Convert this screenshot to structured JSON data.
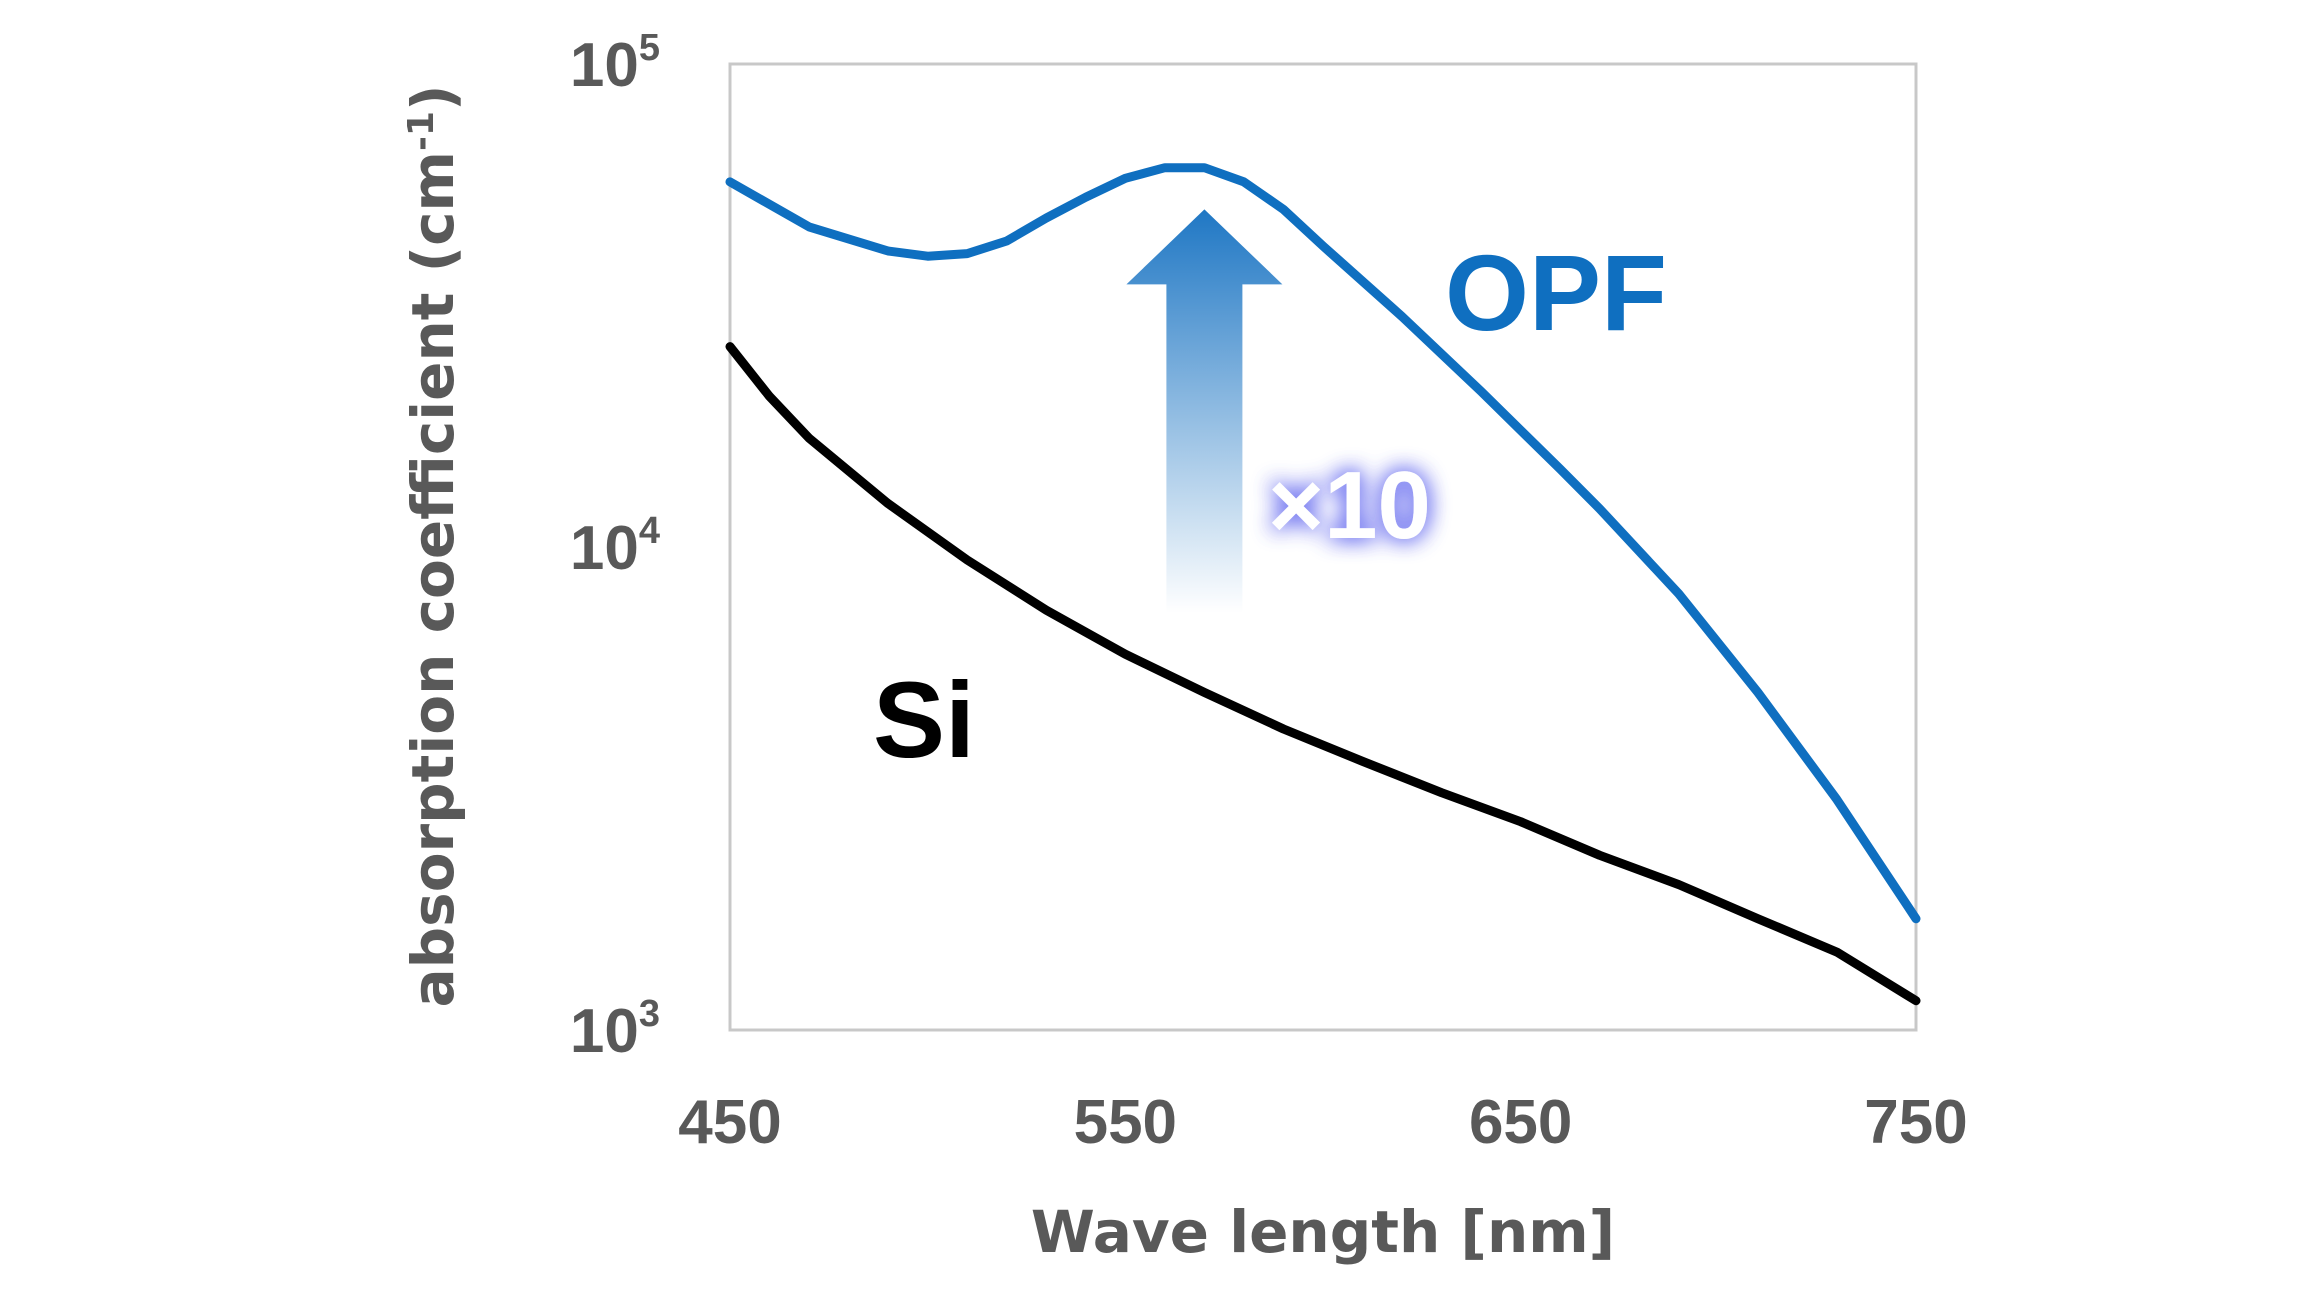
{
  "chart_data": {
    "type": "line",
    "xlabel": "Wave length [nm]",
    "ylabel": "absorption coefficient (cm",
    "ylabel_sup": "-1",
    "ylabel_close": ")",
    "xlim": [
      450,
      750
    ],
    "ylim": [
      1000,
      100000
    ],
    "yscale": "log",
    "grid": false,
    "x_ticks": [
      "450",
      "550",
      "650",
      "750"
    ],
    "y_ticks": [
      {
        "base": "10",
        "exp": "3"
      },
      {
        "base": "10",
        "exp": "4"
      },
      {
        "base": "10",
        "exp": "5"
      }
    ],
    "series": [
      {
        "name": "OPF",
        "color": "#0f6fc0",
        "x": [
          450,
          470,
          490,
          500,
          510,
          520,
          530,
          540,
          550,
          560,
          570,
          580,
          590,
          600,
          620,
          640,
          660,
          670,
          690,
          710,
          730,
          750
        ],
        "y": [
          57000,
          46000,
          41000,
          40000,
          40500,
          43000,
          48000,
          53000,
          58000,
          61000,
          61000,
          57000,
          50000,
          42000,
          30000,
          21000,
          14500,
          12000,
          8000,
          5000,
          3000,
          1700
        ]
      },
      {
        "name": "Si",
        "color": "#000000",
        "x": [
          450,
          460,
          470,
          490,
          510,
          530,
          550,
          570,
          590,
          610,
          630,
          650,
          670,
          690,
          710,
          730,
          750
        ],
        "y": [
          26000,
          20500,
          16800,
          12300,
          9400,
          7400,
          6000,
          5000,
          4200,
          3600,
          3100,
          2700,
          2300,
          2000,
          1700,
          1450,
          1150
        ]
      }
    ],
    "annotation": {
      "text": "×10",
      "arrow_from": {
        "x": 570,
        "y": 7300
      },
      "arrow_to": {
        "x": 570,
        "y": 50000
      },
      "arrow_color": "#1f77c4",
      "glow_color": "#6f74f0"
    }
  }
}
